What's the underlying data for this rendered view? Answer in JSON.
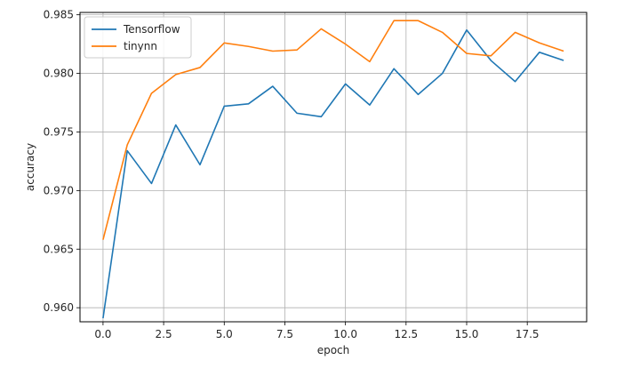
{
  "chart_data": {
    "type": "line",
    "title": "",
    "xlabel": "epoch",
    "ylabel": "accuracy",
    "x": [
      0,
      1,
      2,
      3,
      4,
      5,
      6,
      7,
      8,
      9,
      10,
      11,
      12,
      13,
      14,
      15,
      16,
      17,
      18,
      19
    ],
    "xlim": [
      -0.95,
      19.95
    ],
    "ylim": [
      0.9588,
      0.9852
    ],
    "xticks": [
      0.0,
      2.5,
      5.0,
      7.5,
      10.0,
      12.5,
      15.0,
      17.5
    ],
    "xtick_labels": [
      "0.0",
      "2.5",
      "5.0",
      "7.5",
      "10.0",
      "12.5",
      "15.0",
      "17.5"
    ],
    "yticks": [
      0.96,
      0.965,
      0.97,
      0.975,
      0.98,
      0.985
    ],
    "ytick_labels": [
      "0.960",
      "0.965",
      "0.970",
      "0.975",
      "0.980",
      "0.985"
    ],
    "grid": true,
    "legend_position": "top-left",
    "series": [
      {
        "name": "Tensorflow",
        "color": "#1f77b4",
        "values": [
          0.9591,
          0.9734,
          0.9706,
          0.9756,
          0.9722,
          0.9772,
          0.9774,
          0.9789,
          0.9766,
          0.9763,
          0.9791,
          0.9773,
          0.9804,
          0.9782,
          0.98,
          0.9837,
          0.9811,
          0.9793,
          0.9818,
          0.9811
        ]
      },
      {
        "name": "tinynn",
        "color": "#ff7f0e",
        "values": [
          0.9658,
          0.9739,
          0.9783,
          0.9799,
          0.9805,
          0.9826,
          0.9823,
          0.9819,
          0.982,
          0.9838,
          0.9825,
          0.981,
          0.9845,
          0.9845,
          0.9835,
          0.9817,
          0.9815,
          0.9835,
          0.9826,
          0.9819
        ]
      }
    ]
  }
}
